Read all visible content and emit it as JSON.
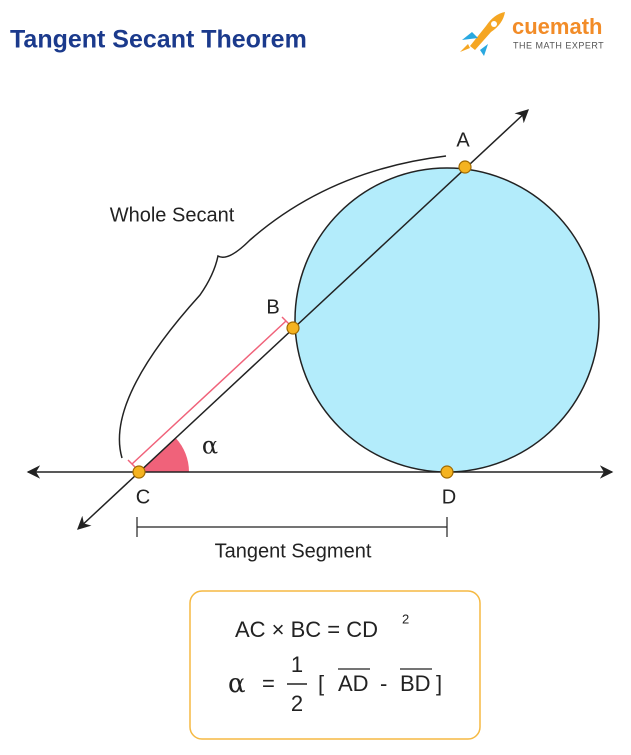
{
  "header": {
    "title": "Tangent Secant Theorem",
    "logo": {
      "name": "cuemath",
      "tagline": "THE MATH EXPERT"
    }
  },
  "diagram": {
    "points": [
      "A",
      "B",
      "C",
      "D"
    ],
    "angle": "α",
    "whole_secant": "Whole Secant",
    "tangent_segment": "Tangent Segment"
  },
  "formula": {
    "line1": {
      "text": "AC × BC = CD",
      "superscript": "2"
    },
    "line2": {
      "lhs": "α",
      "eq": "=",
      "numerator": "1",
      "denominator": "2",
      "open": "[",
      "arc1": "AD",
      "minus": "-",
      "arc2": "BD",
      "close": "]"
    }
  }
}
